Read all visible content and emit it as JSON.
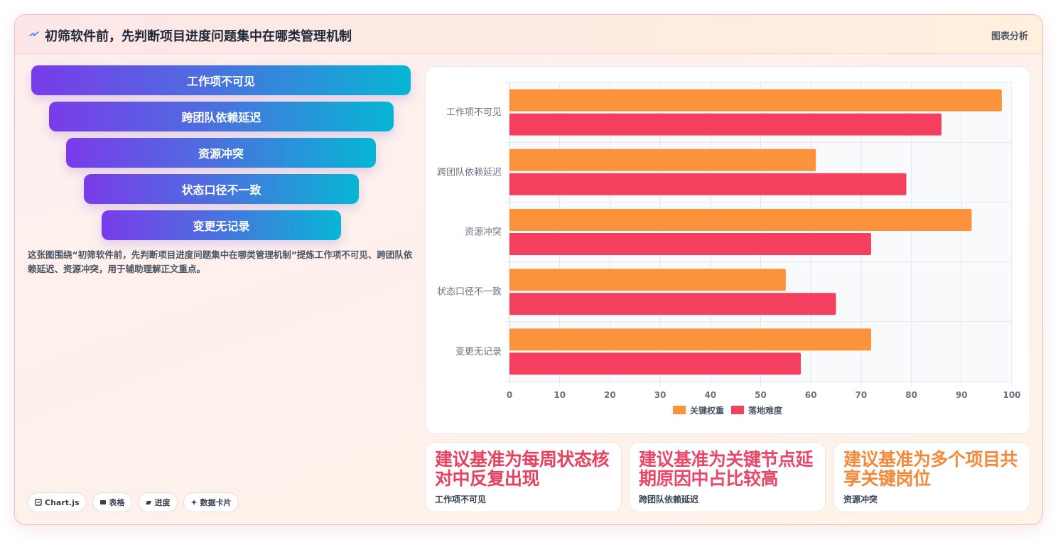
{
  "header": {
    "title": "初筛软件前，先判断项目进度问题集中在哪类管理机制",
    "tag": "图表分析",
    "logo_icon": "sparkle-icon"
  },
  "funnel": {
    "items": [
      "工作项不可见",
      "跨团队依赖延迟",
      "资源冲突",
      "状态口径不一致",
      "变更无记录"
    ]
  },
  "description": "这张图围绕“初筛软件前，先判断项目进度问题集中在哪类管理机制”提炼工作项不可见、跨团队依赖延迟、资源冲突，用于辅助理解正文重点。",
  "chips": [
    {
      "label": "Chart.js",
      "icon": "chart-icon"
    },
    {
      "label": "表格",
      "icon": "table-icon"
    },
    {
      "label": "进度",
      "icon": "progress-icon"
    },
    {
      "label": "数据卡片",
      "icon": "sparkle-icon"
    }
  ],
  "chart_data": {
    "type": "bar",
    "orientation": "horizontal",
    "categories": [
      "工作项不可见",
      "跨团队依赖延迟",
      "资源冲突",
      "状态口径不一致",
      "变更无记录"
    ],
    "series": [
      {
        "name": "关键权重",
        "color": "#fb923c",
        "values": [
          98,
          61,
          92,
          55,
          72
        ]
      },
      {
        "name": "落地难度",
        "color": "#f43f5e",
        "values": [
          86,
          79,
          72,
          65,
          58
        ]
      }
    ],
    "xlim": [
      0,
      100
    ],
    "xticks": [
      0,
      10,
      20,
      30,
      40,
      50,
      60,
      70,
      80,
      90,
      100
    ],
    "grid": true,
    "legend_position": "bottom"
  },
  "stats": [
    {
      "value": "建议基准为每周状态核对中反复出现",
      "label": "工作项不可见",
      "color": "#e8405f"
    },
    {
      "value": "建议基准为关键节点延期原因中占比较高",
      "label": "跨团队依赖延迟",
      "color": "#ea4768"
    },
    {
      "value": "建议基准为多个项目共享关键岗位",
      "label": "资源冲突",
      "color": "#f28a3a"
    }
  ]
}
